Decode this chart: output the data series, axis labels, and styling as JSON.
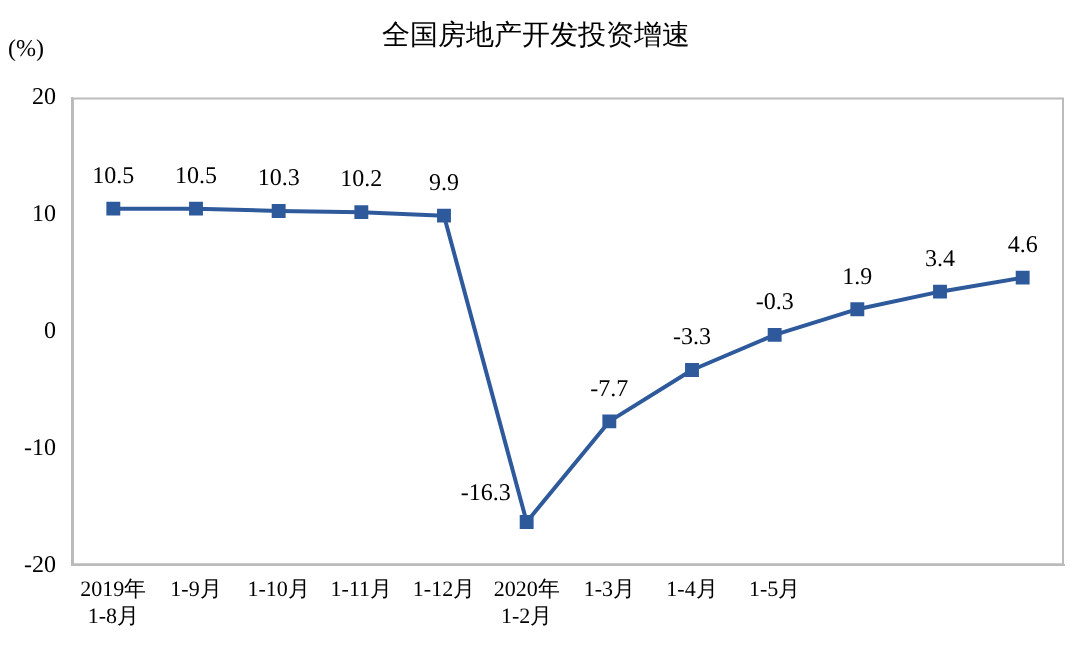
{
  "chart_data": {
    "type": "line",
    "title": "全国房地产开发投资增速",
    "ylabel": "(%)",
    "categories": [
      "2019年\n1-8月",
      "1-9月",
      "1-10月",
      "1-11月",
      "1-12月",
      "2020年\n1-2月",
      "1-3月",
      "1-4月",
      "1-5月",
      null,
      null,
      null
    ],
    "series": [
      {
        "color": "#2e5a9c",
        "values": [
          10.5,
          10.5,
          10.3,
          10.2,
          9.9,
          -16.3,
          -7.7,
          -3.3,
          -0.3,
          1.9,
          3.4,
          4.6
        ]
      }
    ],
    "ylim": [
      -20,
      20
    ],
    "yticks": [
      -20,
      -10,
      0,
      10,
      20
    ],
    "grid": false,
    "legend": false,
    "marker": "square",
    "line_style": "solid",
    "data_labels": true
  }
}
